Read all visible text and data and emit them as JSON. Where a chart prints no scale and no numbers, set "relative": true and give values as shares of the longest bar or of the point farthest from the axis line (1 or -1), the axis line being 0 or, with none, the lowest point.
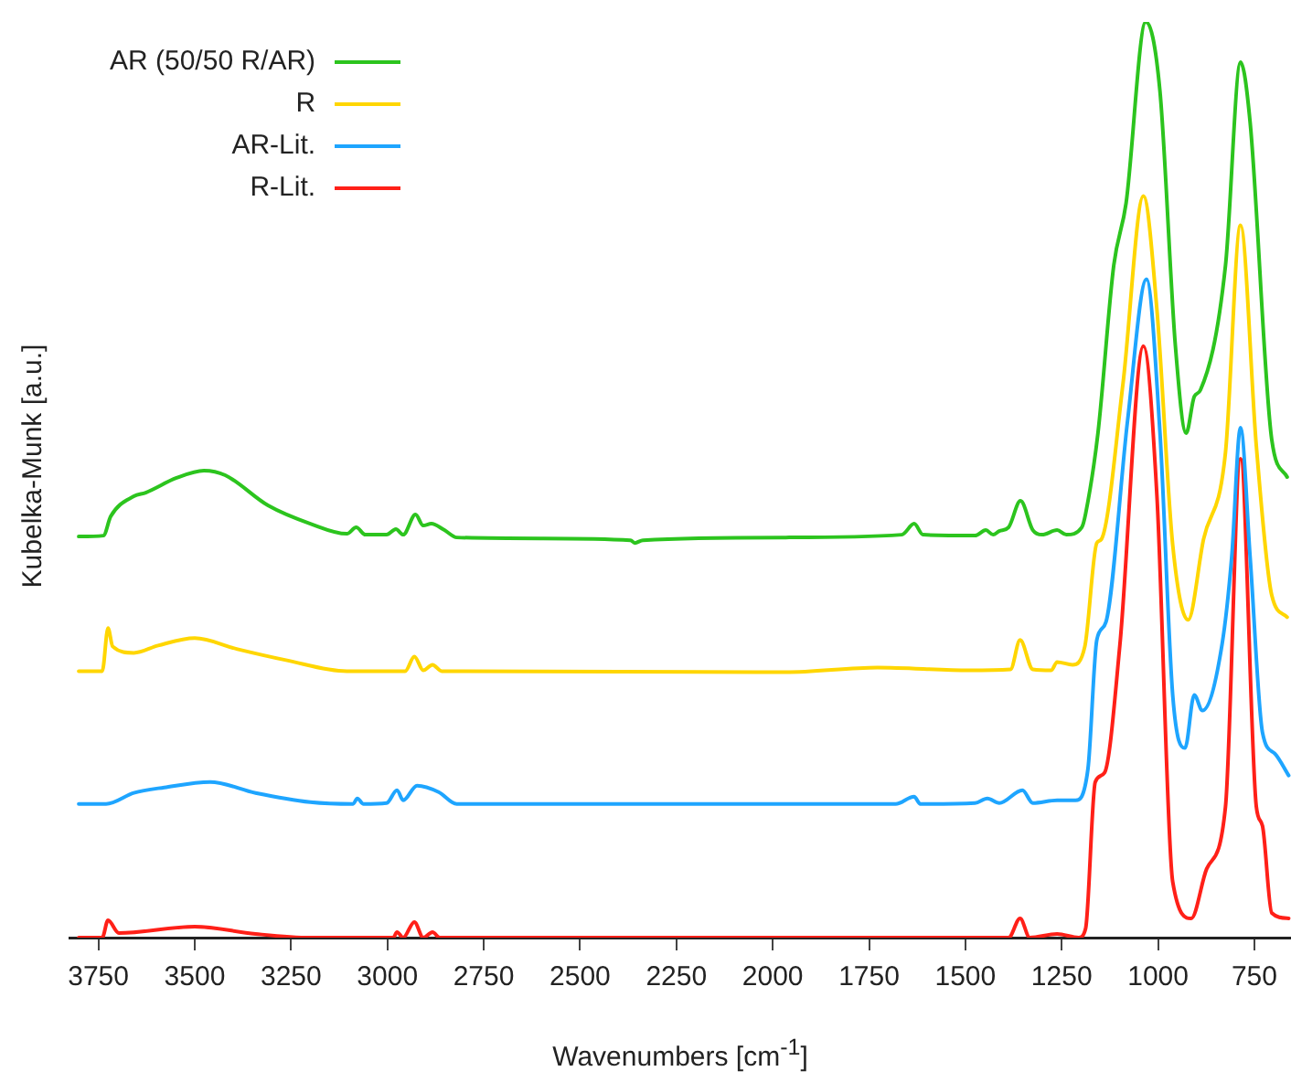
{
  "chart_data": {
    "type": "line",
    "xlabel": "Wavenumbers [cm$^{-1}$]",
    "ylabel": "Kubelka-Munk [a.u.]",
    "relative": true,
    "xlim": [
      3825,
      655
    ],
    "xticks": [
      3750,
      3500,
      3250,
      3000,
      2750,
      2500,
      2250,
      2000,
      1750,
      1500,
      1250,
      1000,
      750
    ],
    "grid": false,
    "legend": "top left",
    "marker": "none",
    "line_style": "solid",
    "series": [
      {
        "name": "AR (50/50 R/AR)",
        "color": "#2cc41e",
        "x": [
          3801,
          3737,
          3718,
          3658,
          3627,
          3547,
          3476,
          3421,
          3310,
          3200,
          3105,
          3081,
          3057,
          3002,
          2978,
          2959,
          2927,
          2907,
          2886,
          2852,
          2820,
          2598,
          2369,
          2358,
          2337,
          1966,
          1665,
          1633,
          1610,
          1475,
          1447,
          1428,
          1412,
          1388,
          1357,
          1325,
          1301,
          1262,
          1238,
          1198,
          1188,
          1156,
          1115,
          1083,
          1032,
          995,
          955,
          927,
          906,
          890,
          825,
          786,
          761,
          705,
          665
        ],
        "values": [
          0.438,
          0.439,
          0.46,
          0.482,
          0.486,
          0.502,
          0.51,
          0.505,
          0.472,
          0.452,
          0.441,
          0.448,
          0.44,
          0.44,
          0.446,
          0.44,
          0.462,
          0.45,
          0.452,
          0.445,
          0.437,
          0.436,
          0.434,
          0.431,
          0.434,
          0.437,
          0.44,
          0.452,
          0.44,
          0.439,
          0.445,
          0.44,
          0.444,
          0.448,
          0.477,
          0.445,
          0.44,
          0.445,
          0.44,
          0.448,
          0.463,
          0.551,
          0.734,
          0.802,
          1.0,
          0.924,
          0.646,
          0.551,
          0.591,
          0.598,
          0.734,
          0.956,
          0.89,
          0.544,
          0.503
        ]
      },
      {
        "name": "R",
        "color": "#ffd600",
        "x": [
          3801,
          3740,
          3725,
          3713,
          3658,
          3595,
          3500,
          3389,
          3263,
          3105,
          2954,
          2930,
          2907,
          2883,
          2859,
          1966,
          1728,
          1491,
          1383,
          1358,
          1325,
          1277,
          1262,
          1222,
          1190,
          1159,
          1147,
          1091,
          1038,
          1003,
          962,
          922,
          882,
          825,
          786,
          745,
          705,
          665
        ],
        "values": [
          0.291,
          0.291,
          0.338,
          0.318,
          0.311,
          0.319,
          0.327,
          0.315,
          0.303,
          0.291,
          0.291,
          0.307,
          0.292,
          0.298,
          0.291,
          0.29,
          0.295,
          0.292,
          0.293,
          0.325,
          0.293,
          0.292,
          0.301,
          0.298,
          0.318,
          0.431,
          0.435,
          0.605,
          0.81,
          0.686,
          0.429,
          0.347,
          0.435,
          0.53,
          0.778,
          0.537,
          0.374,
          0.35
        ]
      },
      {
        "name": "AR-Lit.",
        "color": "#1ea5ff",
        "x": [
          3801,
          3730,
          3658,
          3579,
          3460,
          3342,
          3200,
          3089,
          3078,
          3062,
          3002,
          2975,
          2959,
          2923,
          2867,
          2820,
          1966,
          1681,
          1633,
          1617,
          1475,
          1443,
          1412,
          1352,
          1325,
          1262,
          1214,
          1182,
          1159,
          1135,
          1079,
          1030,
          995,
          962,
          930,
          906,
          885,
          834,
          809,
          786,
          761,
          729,
          697,
          661
        ],
        "values": [
          0.146,
          0.146,
          0.158,
          0.164,
          0.17,
          0.158,
          0.148,
          0.146,
          0.152,
          0.146,
          0.147,
          0.161,
          0.15,
          0.166,
          0.159,
          0.146,
          0.146,
          0.146,
          0.154,
          0.146,
          0.147,
          0.152,
          0.147,
          0.161,
          0.147,
          0.15,
          0.15,
          0.184,
          0.325,
          0.345,
          0.565,
          0.719,
          0.551,
          0.265,
          0.207,
          0.265,
          0.248,
          0.32,
          0.415,
          0.557,
          0.415,
          0.224,
          0.201,
          0.177
        ]
      },
      {
        "name": "R-Lit.",
        "color": "#ff2018",
        "x": [
          3801,
          3740,
          3725,
          3697,
          3500,
          3342,
          3200,
          2985,
          2975,
          2959,
          2930,
          2907,
          2883,
          2864,
          1388,
          1358,
          1333,
          1262,
          1206,
          1188,
          1163,
          1139,
          1099,
          1038,
          1003,
          962,
          914,
          874,
          825,
          786,
          745,
          729,
          705,
          661
        ],
        "values": [
          0,
          0,
          0.019,
          0.005,
          0.012,
          0.004,
          0,
          0,
          0.006,
          0,
          0.017,
          0,
          0.006,
          0,
          0,
          0.021,
          0,
          0.004,
          0,
          0.01,
          0.17,
          0.18,
          0.32,
          0.646,
          0.483,
          0.061,
          0.021,
          0.075,
          0.143,
          0.523,
          0.143,
          0.122,
          0.027,
          0.021
        ]
      }
    ]
  }
}
